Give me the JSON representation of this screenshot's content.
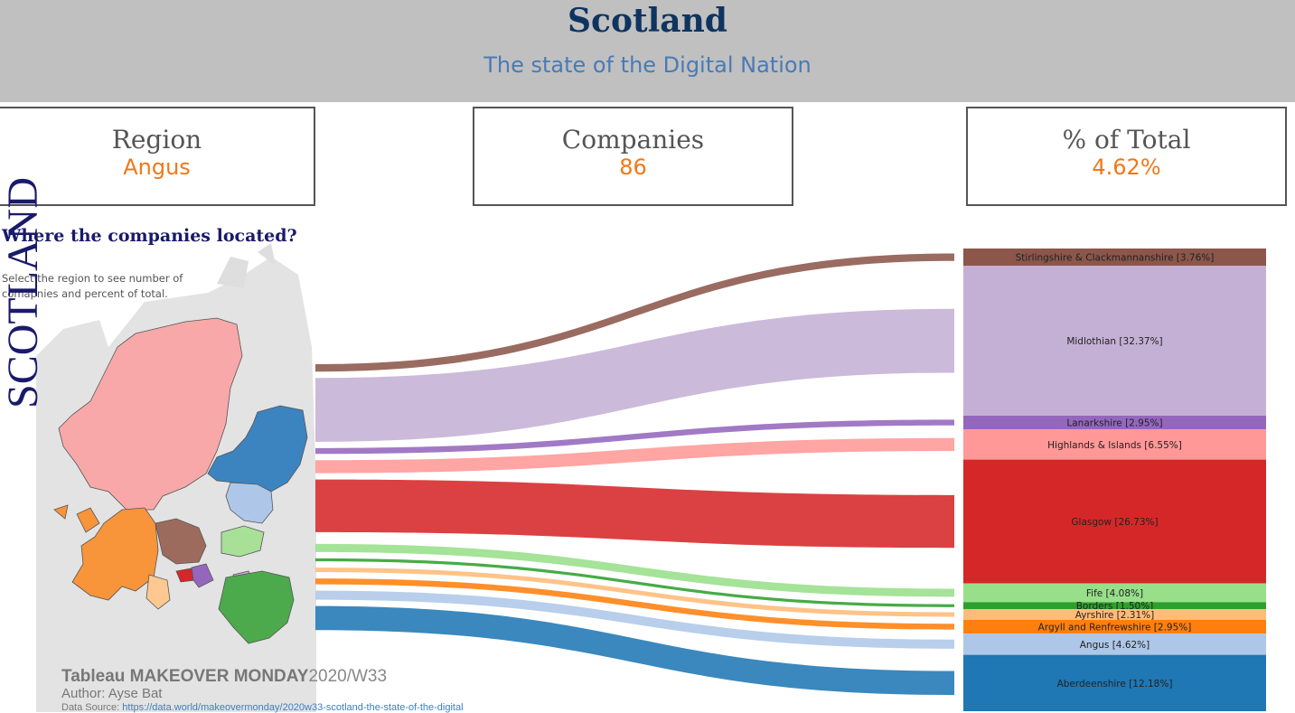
{
  "header": {
    "title": "Scotland",
    "subtitle": "The state of the Digital Nation"
  },
  "kpis": {
    "region_label": "Region",
    "region_value": "Angus",
    "companies_label": "Companies",
    "companies_value": "86",
    "pct_label": "% of Total",
    "pct_value": "4.62%"
  },
  "map": {
    "heading": "Where the companies located?",
    "instruction": "Select the region to see number of comapnies  and percent of  total.",
    "vertical_label": "SCOTLAND"
  },
  "footer": {
    "title_bold": "Tableau MAKEOVER MONDAY",
    "title_rest": "2020/W33",
    "author_prefix": "Author:",
    "author_name": "Ayse Bat",
    "source_prefix": "Data Source:",
    "source_url": "https://data.world/makeovermonday/2020w33-scotland-the-state-of-the-digital"
  },
  "colors": {
    "header_bg": "#c0c0c0",
    "title": "#0f3460",
    "subtitle": "#4a7ab5",
    "accent_value": "#f07818"
  },
  "chart_data": {
    "type": "sankey",
    "unit": "% of total companies",
    "total_companies_shown": "86 (Angus, 4.62%)",
    "categories": [
      "Stirlingshire & Clackmannanshire",
      "Midlothian",
      "Lanarkshire",
      "Highlands & Islands",
      "Glasgow",
      "Fife",
      "Borders",
      "Ayrshire",
      "Argyll and Renfrewshire",
      "Angus",
      "Aberdeenshire"
    ],
    "values": [
      3.76,
      32.37,
      2.95,
      6.55,
      26.73,
      4.08,
      1.5,
      2.31,
      2.95,
      4.62,
      12.18
    ],
    "labels": [
      "Stirlingshire & Clackmannanshire [3.76%]",
      "Midlothian [32.37%]",
      "Lanarkshire [2.95%]",
      "Highlands & Islands [6.55%]",
      "Glasgow [26.73%]",
      "Fife [4.08%]",
      "Borders [1.50%]",
      "Ayrshire [2.31%]",
      "Argyll and Renfrewshire [2.95%]",
      "Angus [4.62%]",
      "Aberdeenshire [12.18%]"
    ],
    "colors": [
      "#8c564b",
      "#c5b0d5",
      "#9467bd",
      "#ff9896",
      "#d62728",
      "#98df8a",
      "#2ca02c",
      "#ffbb78",
      "#ff7f0e",
      "#aec7e8",
      "#1f77b4"
    ]
  }
}
